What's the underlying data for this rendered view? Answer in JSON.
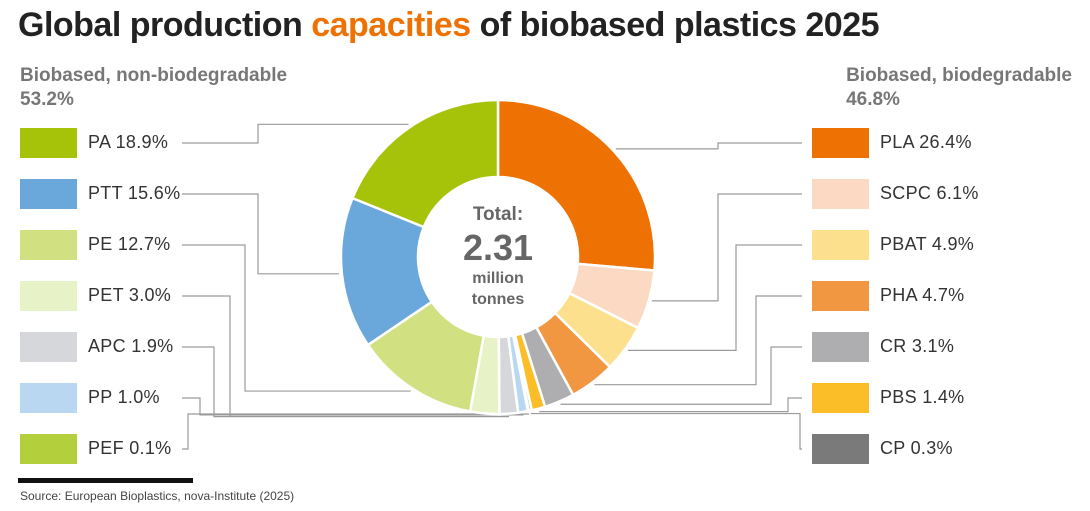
{
  "title": {
    "prefix": "Global production ",
    "highlight": "capacities",
    "suffix": " of biobased plastics 2025",
    "highlight_color": "#ee7203"
  },
  "groups": {
    "left": {
      "name": "Biobased, non-biodegradable",
      "share": "53.2%"
    },
    "right": {
      "name": "Biobased, biodegradable",
      "share": "46.8%"
    }
  },
  "center": {
    "label": "Total:",
    "value": "2.31",
    "unit_line1": "million",
    "unit_line2": "tonnes"
  },
  "legend_left": [
    {
      "label": "PA 18.9%",
      "color": "#a6c30a"
    },
    {
      "label": "PTT 15.6%",
      "color": "#6aa8dc"
    },
    {
      "label": "PE 12.7%",
      "color": "#d1e181"
    },
    {
      "label": "PET 3.0%",
      "color": "#e8f2c7"
    },
    {
      "label": "APC 1.9%",
      "color": "#d6d7da"
    },
    {
      "label": "PP 1.0%",
      "color": "#b9d7f1"
    },
    {
      "label": "PEF 0.1%",
      "color": "#b3cf3c"
    }
  ],
  "legend_right": [
    {
      "label": "PLA 26.4%",
      "color": "#ee7203"
    },
    {
      "label": "SCPC 6.1%",
      "color": "#fbd9c2"
    },
    {
      "label": "PBAT 4.9%",
      "color": "#fde08e"
    },
    {
      "label": "PHA 4.7%",
      "color": "#f19641"
    },
    {
      "label": "CR 3.1%",
      "color": "#aeaeb0"
    },
    {
      "label": "PBS 1.4%",
      "color": "#fbbd28"
    },
    {
      "label": "CP 0.3%",
      "color": "#7a7a7a"
    }
  ],
  "chart_data": {
    "type": "pie",
    "title": "Global production capacities of biobased plastics 2025",
    "subtitle": "Total: 2.31 million tonnes",
    "categories": [
      "PLA",
      "SCPC",
      "PBAT",
      "PHA",
      "CR",
      "PBS",
      "CP",
      "PEF",
      "PP",
      "APC",
      "PET",
      "PE",
      "PTT",
      "PA"
    ],
    "values": [
      26.4,
      6.1,
      4.9,
      4.7,
      3.1,
      1.4,
      0.3,
      0.1,
      1.0,
      1.9,
      3.0,
      12.7,
      15.6,
      18.9
    ],
    "colors": [
      "#ee7203",
      "#fbd9c2",
      "#fde08e",
      "#f19641",
      "#aeaeb0",
      "#fbbd28",
      "#7a7a7a",
      "#b3cf3c",
      "#b9d7f1",
      "#d6d7da",
      "#e8f2c7",
      "#d1e181",
      "#6aa8dc",
      "#a6c30a"
    ],
    "unit": "%",
    "groups": [
      {
        "name": "Biobased, non-biodegradable",
        "share": 53.2
      },
      {
        "name": "Biobased, biodegradable",
        "share": 46.8
      }
    ]
  },
  "source": "Source: European Bioplastics, nova-Institute (2025)"
}
